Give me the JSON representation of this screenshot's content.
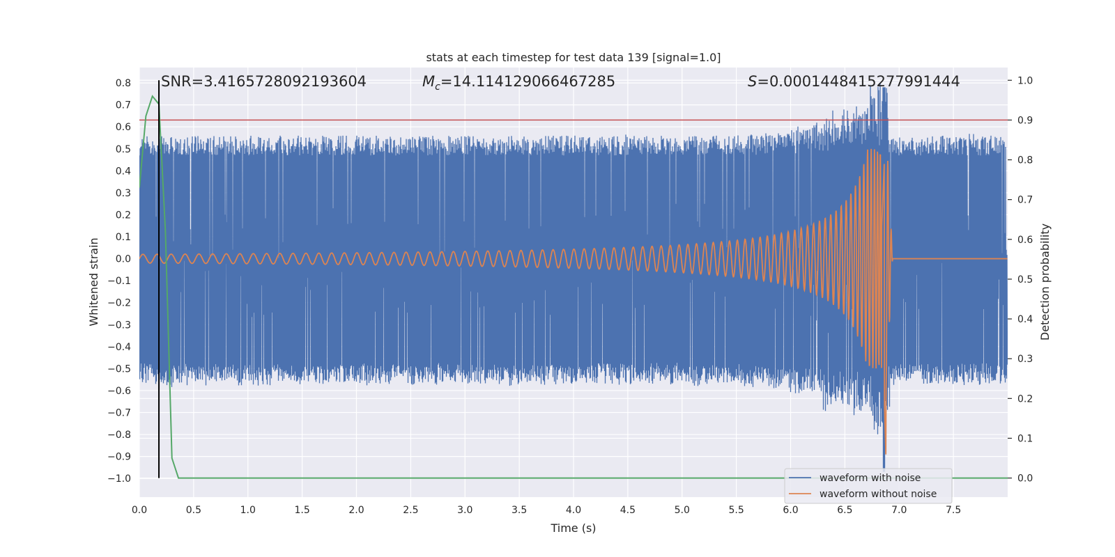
{
  "chart_data": {
    "type": "line",
    "title": "stats at each timestep for test data 139 [signal=1.0]",
    "xlabel": "Time (s)",
    "ylabel": "Whitened strain",
    "y2label": "Detection probability",
    "xlim": [
      0.0,
      8.0
    ],
    "ylim": [
      -1.085,
      0.87
    ],
    "y2lim": [
      -0.048,
      1.032
    ],
    "x_ticks": [
      0.0,
      0.5,
      1.0,
      1.5,
      2.0,
      2.5,
      3.0,
      3.5,
      4.0,
      4.5,
      5.0,
      5.5,
      6.0,
      6.5,
      7.0,
      7.5
    ],
    "x_tick_labels": [
      "0.0",
      "0.5",
      "1.0",
      "1.5",
      "2.0",
      "2.5",
      "3.0",
      "3.5",
      "4.0",
      "4.5",
      "5.0",
      "5.5",
      "6.0",
      "6.5",
      "7.0",
      "7.5"
    ],
    "y_ticks": [
      0.8,
      0.7,
      0.6,
      0.5,
      0.4,
      0.3,
      0.2,
      0.1,
      0.0,
      -0.1,
      -0.2,
      -0.3,
      -0.4,
      -0.5,
      -0.6,
      -0.7,
      -0.8,
      -0.9,
      -1.0
    ],
    "y_tick_labels": [
      "0.8",
      "0.7",
      "0.6",
      "0.5",
      "0.4",
      "0.3",
      "0.2",
      "0.1",
      "0.0",
      "−0.1",
      "−0.2",
      "−0.3",
      "−0.4",
      "−0.5",
      "−0.6",
      "−0.7",
      "−0.8",
      "−0.9",
      "−1.0"
    ],
    "y2_ticks": [
      1.0,
      0.9,
      0.8,
      0.7,
      0.6,
      0.5,
      0.4,
      0.3,
      0.2,
      0.1,
      0.0
    ],
    "y2_tick_labels": [
      "1.0",
      "0.9",
      "0.8",
      "0.7",
      "0.6",
      "0.5",
      "0.4",
      "0.3",
      "0.2",
      "0.1",
      "0.0"
    ],
    "grid": true,
    "legend_position": "lower-right",
    "annotations": {
      "snr": "SNR=3.4165728092193604",
      "mc_sym": "M",
      "mc_sub": "c",
      "mc_val": "=14.114129066467285",
      "s_sym": "S",
      "s_val": "=0.0001448415277991444"
    },
    "marker_time": 0.18,
    "threshold_probability": 0.9,
    "merger_time": 6.88,
    "series": [
      {
        "name": "waveform with noise",
        "color": "#4c72b0",
        "noise_envelope": {
          "typical_amplitude": 0.5,
          "peak_high": 0.78,
          "peak_low": -0.97
        }
      },
      {
        "name": "waveform without noise",
        "color": "#dd8452",
        "chirp": {
          "initial_amplitude": 0.02,
          "peak_amplitude": 0.5,
          "merger_time": 6.88
        }
      },
      {
        "name": "",
        "color": "#55a868",
        "axis": "y2",
        "x": [
          0.0,
          0.06,
          0.12,
          0.18,
          0.24,
          0.3,
          0.36,
          0.42,
          8.0
        ],
        "y": [
          0.73,
          0.91,
          0.96,
          0.94,
          0.62,
          0.05,
          0.0,
          0.0,
          0.0
        ]
      }
    ],
    "colors": {
      "background": "#eaeaf2",
      "grid": "#ffffff",
      "threshold": "#c44e52",
      "marker": "#000000"
    }
  }
}
